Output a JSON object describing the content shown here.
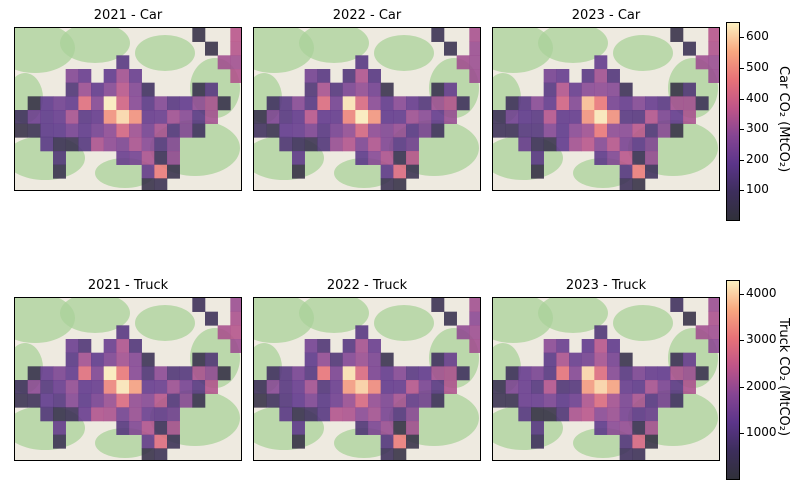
{
  "chart_data": [
    {
      "type": "heatmap",
      "title": "2021 - Car",
      "grid": {
        "cols": 18,
        "rows": 12
      },
      "colorbar": "car"
    },
    {
      "type": "heatmap",
      "title": "2022 - Car",
      "grid": {
        "cols": 18,
        "rows": 12
      },
      "colorbar": "car"
    },
    {
      "type": "heatmap",
      "title": "2023 - Car",
      "grid": {
        "cols": 18,
        "rows": 12
      },
      "colorbar": "car"
    },
    {
      "type": "heatmap",
      "title": "2021 - Truck",
      "grid": {
        "cols": 18,
        "rows": 12
      },
      "colorbar": "truck"
    },
    {
      "type": "heatmap",
      "title": "2022 - Truck",
      "grid": {
        "cols": 18,
        "rows": 12
      },
      "colorbar": "truck"
    },
    {
      "type": "heatmap",
      "title": "2023 - Truck",
      "grid": {
        "cols": 18,
        "rows": 12
      },
      "colorbar": "truck"
    }
  ],
  "colorbars": {
    "car": {
      "label": "Car CO₂ (MtCO₂)",
      "min": 0,
      "max": 650,
      "ticks": [
        100,
        200,
        300,
        400,
        500,
        600
      ],
      "colormap": "magma"
    },
    "truck": {
      "label": "Truck CO₂ (MtCO₂)",
      "min": 0,
      "max": 4300,
      "ticks": [
        1000,
        2000,
        3000,
        4000
      ],
      "colormap": "magma"
    }
  },
  "basemap": {
    "water_color": "#a9d3df",
    "forest_color": "#a9d199",
    "land_color": "#eeeae0"
  }
}
